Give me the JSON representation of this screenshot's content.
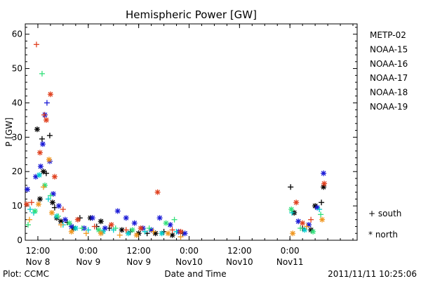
{
  "chart_data": {
    "type": "scatter",
    "title": "Hemispheric Power [GW]",
    "ylabel": "P [GW]",
    "xlabel": "Date and Time",
    "ylim": [
      0,
      63
    ],
    "yticks": [
      0,
      10,
      20,
      30,
      40,
      50,
      60
    ],
    "xlim": [
      "2011-11-08 09:00",
      "2011-11-11 16:00"
    ],
    "xticks": [
      {
        "time": "2011-11-08 12:00",
        "line1": "12:00",
        "line2": "Nov 8"
      },
      {
        "time": "2011-11-09 00:00",
        "line1": "0:00",
        "line2": "Nov 9"
      },
      {
        "time": "2011-11-09 12:00",
        "line1": "12:00",
        "line2": "Nov 9"
      },
      {
        "time": "2011-11-10 00:00",
        "line1": "0:00",
        "line2": "Nov10"
      },
      {
        "time": "2011-11-10 12:00",
        "line1": "12:00",
        "line2": "Nov10"
      },
      {
        "time": "2011-11-11 00:00",
        "line1": "0:00",
        "line2": "Nov11"
      }
    ],
    "hemisphere_legend": [
      {
        "symbol": "+",
        "label": "south"
      },
      {
        "symbol": "*",
        "label": "north"
      }
    ],
    "series": [
      {
        "name": "METP-02",
        "color": "#000000",
        "points": [
          {
            "t": "2011-11-08 11:50",
            "v": 32.3,
            "h": "N"
          },
          {
            "t": "2011-11-08 12:30",
            "v": 12.0,
            "h": "N"
          },
          {
            "t": "2011-11-08 13:00",
            "v": 29.5,
            "h": "S"
          },
          {
            "t": "2011-11-08 13:20",
            "v": 20.0,
            "h": "N"
          },
          {
            "t": "2011-11-08 14:00",
            "v": 19.5,
            "h": "S"
          },
          {
            "t": "2011-11-08 14:50",
            "v": 30.5,
            "h": "S"
          },
          {
            "t": "2011-11-08 15:30",
            "v": 11.0,
            "h": "N"
          },
          {
            "t": "2011-11-08 16:00",
            "v": 9.5,
            "h": "S"
          },
          {
            "t": "2011-11-08 16:30",
            "v": 6.5,
            "h": "N"
          },
          {
            "t": "2011-11-08 17:30",
            "v": 5.5,
            "h": "N"
          },
          {
            "t": "2011-11-08 19:00",
            "v": 5.2,
            "h": "S"
          },
          {
            "t": "2011-11-08 20:30",
            "v": 3.5,
            "h": "N"
          },
          {
            "t": "2011-11-08 22:00",
            "v": 6.5,
            "h": "S"
          },
          {
            "t": "2011-11-09 00:30",
            "v": 6.5,
            "h": "N"
          },
          {
            "t": "2011-11-09 02:00",
            "v": 4.0,
            "h": "S"
          },
          {
            "t": "2011-11-09 03:00",
            "v": 5.5,
            "h": "N"
          },
          {
            "t": "2011-11-09 05:00",
            "v": 3.5,
            "h": "S"
          },
          {
            "t": "2011-11-09 08:00",
            "v": 3.0,
            "h": "N"
          },
          {
            "t": "2011-11-09 10:00",
            "v": 2.5,
            "h": "S"
          },
          {
            "t": "2011-11-09 12:00",
            "v": 2.0,
            "h": "N"
          },
          {
            "t": "2011-11-09 14:00",
            "v": 2.0,
            "h": "S"
          },
          {
            "t": "2011-11-09 16:00",
            "v": 2.0,
            "h": "N"
          },
          {
            "t": "2011-11-09 18:00",
            "v": 2.5,
            "h": "S"
          },
          {
            "t": "2011-11-09 20:00",
            "v": 1.5,
            "h": "N"
          },
          {
            "t": "2011-11-09 22:30",
            "v": 2.0,
            "h": "S"
          },
          {
            "t": "2011-11-11 00:10",
            "v": 15.5,
            "h": "S"
          },
          {
            "t": "2011-11-11 01:00",
            "v": 8.0,
            "h": "N"
          },
          {
            "t": "2011-11-11 03:00",
            "v": 3.5,
            "h": "S"
          },
          {
            "t": "2011-11-11 05:00",
            "v": 3.0,
            "h": "N"
          },
          {
            "t": "2011-11-11 06:00",
            "v": 10.0,
            "h": "N"
          },
          {
            "t": "2011-11-11 07:30",
            "v": 11.0,
            "h": "S"
          },
          {
            "t": "2011-11-11 08:00",
            "v": 15.5,
            "h": "N"
          }
        ]
      },
      {
        "name": "NOAA-15",
        "color": "#1a1ad6",
        "points": [
          {
            "t": "2011-11-08 09:30",
            "v": 14.8,
            "h": "N"
          },
          {
            "t": "2011-11-08 11:30",
            "v": 18.5,
            "h": "N"
          },
          {
            "t": "2011-11-08 12:40",
            "v": 21.5,
            "h": "N"
          },
          {
            "t": "2011-11-08 13:10",
            "v": 28.0,
            "h": "N"
          },
          {
            "t": "2011-11-08 13:40",
            "v": 36.5,
            "h": "N"
          },
          {
            "t": "2011-11-08 14:10",
            "v": 40.0,
            "h": "S"
          },
          {
            "t": "2011-11-08 14:50",
            "v": 23.0,
            "h": "N"
          },
          {
            "t": "2011-11-08 15:40",
            "v": 13.5,
            "h": "N"
          },
          {
            "t": "2011-11-08 17:00",
            "v": 10.0,
            "h": "N"
          },
          {
            "t": "2011-11-08 18:30",
            "v": 6.0,
            "h": "N"
          },
          {
            "t": "2011-11-08 20:00",
            "v": 4.0,
            "h": "N"
          },
          {
            "t": "2011-11-08 23:00",
            "v": 3.5,
            "h": "N"
          },
          {
            "t": "2011-11-09 01:00",
            "v": 6.5,
            "h": "N"
          },
          {
            "t": "2011-11-09 04:00",
            "v": 3.5,
            "h": "N"
          },
          {
            "t": "2011-11-09 07:00",
            "v": 8.5,
            "h": "N"
          },
          {
            "t": "2011-11-09 09:00",
            "v": 6.5,
            "h": "N"
          },
          {
            "t": "2011-11-09 11:00",
            "v": 5.0,
            "h": "N"
          },
          {
            "t": "2011-11-09 13:00",
            "v": 3.5,
            "h": "N"
          },
          {
            "t": "2011-11-09 15:00",
            "v": 3.0,
            "h": "N"
          },
          {
            "t": "2011-11-09 17:00",
            "v": 6.5,
            "h": "N"
          },
          {
            "t": "2011-11-09 19:30",
            "v": 4.5,
            "h": "N"
          },
          {
            "t": "2011-11-09 21:30",
            "v": 2.5,
            "h": "N"
          },
          {
            "t": "2011-11-09 23:00",
            "v": 2.0,
            "h": "N"
          },
          {
            "t": "2011-11-11 02:00",
            "v": 5.5,
            "h": "N"
          },
          {
            "t": "2011-11-11 04:30",
            "v": 4.5,
            "h": "N"
          },
          {
            "t": "2011-11-11 06:30",
            "v": 9.5,
            "h": "N"
          },
          {
            "t": "2011-11-11 08:00",
            "v": 19.5,
            "h": "N"
          }
        ]
      },
      {
        "name": "NOAA-16",
        "color": "#00cccc",
        "points": [
          {
            "t": "2011-11-08 10:10",
            "v": 9.0,
            "h": "S"
          },
          {
            "t": "2011-11-08 11:00",
            "v": 8.0,
            "h": "S"
          },
          {
            "t": "2011-11-08 12:20",
            "v": 19.0,
            "h": "N"
          },
          {
            "t": "2011-11-08 14:30",
            "v": 12.0,
            "h": "S"
          },
          {
            "t": "2011-11-08 16:30",
            "v": 7.0,
            "h": "N"
          },
          {
            "t": "2011-11-08 18:00",
            "v": 4.5,
            "h": "S"
          },
          {
            "t": "2011-11-08 21:00",
            "v": 3.5,
            "h": "N"
          },
          {
            "t": "2011-11-09 00:00",
            "v": 3.0,
            "h": "S"
          },
          {
            "t": "2011-11-09 03:30",
            "v": 2.5,
            "h": "N"
          },
          {
            "t": "2011-11-09 06:00",
            "v": 3.0,
            "h": "S"
          },
          {
            "t": "2011-11-09 09:30",
            "v": 2.0,
            "h": "N"
          },
          {
            "t": "2011-11-09 13:30",
            "v": 2.5,
            "h": "S"
          },
          {
            "t": "2011-11-09 17:30",
            "v": 2.0,
            "h": "N"
          },
          {
            "t": "2011-11-09 21:00",
            "v": 2.5,
            "h": "S"
          },
          {
            "t": "2011-11-11 00:30",
            "v": 8.0,
            "h": "S"
          },
          {
            "t": "2011-11-11 03:30",
            "v": 3.0,
            "h": "N"
          },
          {
            "t": "2011-11-11 07:00",
            "v": 9.0,
            "h": "S"
          }
        ]
      },
      {
        "name": "NOAA-17",
        "color": "#33e07a",
        "points": [
          {
            "t": "2011-11-08 09:40",
            "v": 4.5,
            "h": "S"
          },
          {
            "t": "2011-11-08 11:20",
            "v": 8.5,
            "h": "N"
          },
          {
            "t": "2011-11-08 13:00",
            "v": 48.5,
            "h": "S"
          },
          {
            "t": "2011-11-08 13:40",
            "v": 16.0,
            "h": "N"
          },
          {
            "t": "2011-11-08 15:00",
            "v": 13.0,
            "h": "S"
          },
          {
            "t": "2011-11-08 16:50",
            "v": 7.0,
            "h": "S"
          },
          {
            "t": "2011-11-08 19:30",
            "v": 5.0,
            "h": "N"
          },
          {
            "t": "2011-11-08 22:30",
            "v": 3.5,
            "h": "S"
          },
          {
            "t": "2011-11-09 02:30",
            "v": 3.0,
            "h": "N"
          },
          {
            "t": "2011-11-09 06:30",
            "v": 3.5,
            "h": "S"
          },
          {
            "t": "2011-11-09 10:30",
            "v": 3.0,
            "h": "N"
          },
          {
            "t": "2011-11-09 14:30",
            "v": 3.5,
            "h": "S"
          },
          {
            "t": "2011-11-09 18:30",
            "v": 5.0,
            "h": "N"
          },
          {
            "t": "2011-11-09 20:30",
            "v": 6.0,
            "h": "S"
          },
          {
            "t": "2011-11-11 00:20",
            "v": 9.0,
            "h": "N"
          },
          {
            "t": "2011-11-11 02:30",
            "v": 3.5,
            "h": "S"
          },
          {
            "t": "2011-11-11 05:30",
            "v": 2.5,
            "h": "N"
          },
          {
            "t": "2011-11-11 07:20",
            "v": 7.5,
            "h": "S"
          }
        ]
      },
      {
        "name": "NOAA-18",
        "color": "#f0961e",
        "points": [
          {
            "t": "2011-11-08 10:00",
            "v": 6.0,
            "h": "S"
          },
          {
            "t": "2011-11-08 12:10",
            "v": 10.5,
            "h": "N"
          },
          {
            "t": "2011-11-08 13:20",
            "v": 15.5,
            "h": "S"
          },
          {
            "t": "2011-11-08 14:40",
            "v": 23.5,
            "h": "N"
          },
          {
            "t": "2011-11-08 15:20",
            "v": 8.0,
            "h": "N"
          },
          {
            "t": "2011-11-08 17:30",
            "v": 4.5,
            "h": "S"
          },
          {
            "t": "2011-11-08 20:00",
            "v": 2.5,
            "h": "N"
          },
          {
            "t": "2011-11-08 23:30",
            "v": 2.0,
            "h": "S"
          },
          {
            "t": "2011-11-09 03:00",
            "v": 2.0,
            "h": "N"
          },
          {
            "t": "2011-11-09 07:30",
            "v": 1.5,
            "h": "S"
          },
          {
            "t": "2011-11-09 11:30",
            "v": 1.5,
            "h": "N"
          },
          {
            "t": "2011-11-09 15:30",
            "v": 2.5,
            "h": "S"
          },
          {
            "t": "2011-11-09 19:00",
            "v": 2.0,
            "h": "N"
          },
          {
            "t": "2011-11-09 22:00",
            "v": 1.0,
            "h": "S"
          },
          {
            "t": "2011-11-11 00:40",
            "v": 2.0,
            "h": "N"
          },
          {
            "t": "2011-11-11 04:00",
            "v": 4.0,
            "h": "S"
          },
          {
            "t": "2011-11-11 07:40",
            "v": 6.0,
            "h": "N"
          }
        ]
      },
      {
        "name": "NOAA-19",
        "color": "#e0401e",
        "points": [
          {
            "t": "2011-11-08 09:20",
            "v": 10.5,
            "h": "N"
          },
          {
            "t": "2011-11-08 10:30",
            "v": 11.0,
            "h": "S"
          },
          {
            "t": "2011-11-08 11:40",
            "v": 57.0,
            "h": "S"
          },
          {
            "t": "2011-11-08 12:30",
            "v": 25.5,
            "h": "N"
          },
          {
            "t": "2011-11-08 13:30",
            "v": 36.5,
            "h": "S"
          },
          {
            "t": "2011-11-08 14:00",
            "v": 35.0,
            "h": "N"
          },
          {
            "t": "2011-11-08 15:00",
            "v": 42.5,
            "h": "N"
          },
          {
            "t": "2011-11-08 16:00",
            "v": 18.5,
            "h": "N"
          },
          {
            "t": "2011-11-08 18:00",
            "v": 9.0,
            "h": "S"
          },
          {
            "t": "2011-11-08 21:30",
            "v": 6.0,
            "h": "N"
          },
          {
            "t": "2011-11-09 01:30",
            "v": 4.0,
            "h": "S"
          },
          {
            "t": "2011-11-09 05:30",
            "v": 4.5,
            "h": "N"
          },
          {
            "t": "2011-11-09 09:00",
            "v": 3.0,
            "h": "S"
          },
          {
            "t": "2011-11-09 12:30",
            "v": 3.5,
            "h": "N"
          },
          {
            "t": "2011-11-09 16:30",
            "v": 14.0,
            "h": "N"
          },
          {
            "t": "2011-11-09 20:00",
            "v": 3.0,
            "h": "S"
          },
          {
            "t": "2011-11-09 22:00",
            "v": 2.5,
            "h": "N"
          },
          {
            "t": "2011-11-11 01:30",
            "v": 11.0,
            "h": "N"
          },
          {
            "t": "2011-11-11 03:00",
            "v": 5.0,
            "h": "N"
          },
          {
            "t": "2011-11-11 05:00",
            "v": 6.0,
            "h": "S"
          },
          {
            "t": "2011-11-11 08:10",
            "v": 16.5,
            "h": "N"
          }
        ]
      }
    ]
  },
  "footer": {
    "plot_credit": "Plot: CCMC",
    "timestamp": "2011/11/11  10:25:06"
  }
}
